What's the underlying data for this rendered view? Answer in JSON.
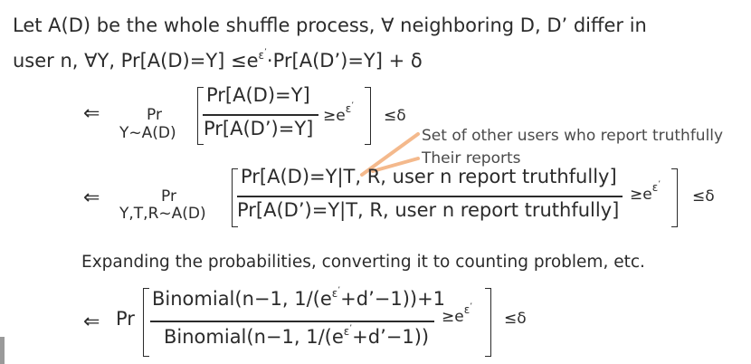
{
  "intro": {
    "line1": "Let A(D) be the whole shuffle process, ∀ neighboring D, D’ differ in",
    "line2_main": "user n, ∀Y, Pr[A(D)=Y] ≤e",
    "line2_exp": "ε",
    "line2_prime": "’",
    "line2_tail": "·Pr[A(D’)=Y] + δ"
  },
  "step1": {
    "arrow": "⇐",
    "pr": "Pr",
    "pr_sub": "Y~A(D)",
    "numerator": "Pr[A(D)=Y]",
    "denominator": "Pr[A(D’)=Y]",
    "ge": "≥e",
    "exp": "ε",
    "prime": "’",
    "le": "≤δ"
  },
  "annotations": {
    "others": "Set of other users who report truthfully",
    "reports": "Their reports",
    "arrow_color": "#f4b98c"
  },
  "step2": {
    "arrow": "⇐",
    "pr": "Pr",
    "pr_sub": "Y,T,R~A(D)",
    "numerator": "Pr[A(D)=Y|T, R, user n report truthfully]",
    "denominator": "Pr[A(D’)=Y|T, R, user n report truthfully]",
    "ge": "≥e",
    "exp": "ε",
    "prime": "’",
    "le": "≤δ"
  },
  "expanding": "Expanding the probabilities, converting it to counting problem, etc.",
  "step3": {
    "arrow": "⇐",
    "pr": "Pr",
    "num_a": "Binomial(n−1, 1/(e",
    "num_b": "+d’−1))+1",
    "den_a": "Binomial(n−1, 1/(e",
    "den_b": "+d’−1))",
    "exp": "ε",
    "prime": "’",
    "ge": "≥e",
    "le": "≤δ"
  }
}
